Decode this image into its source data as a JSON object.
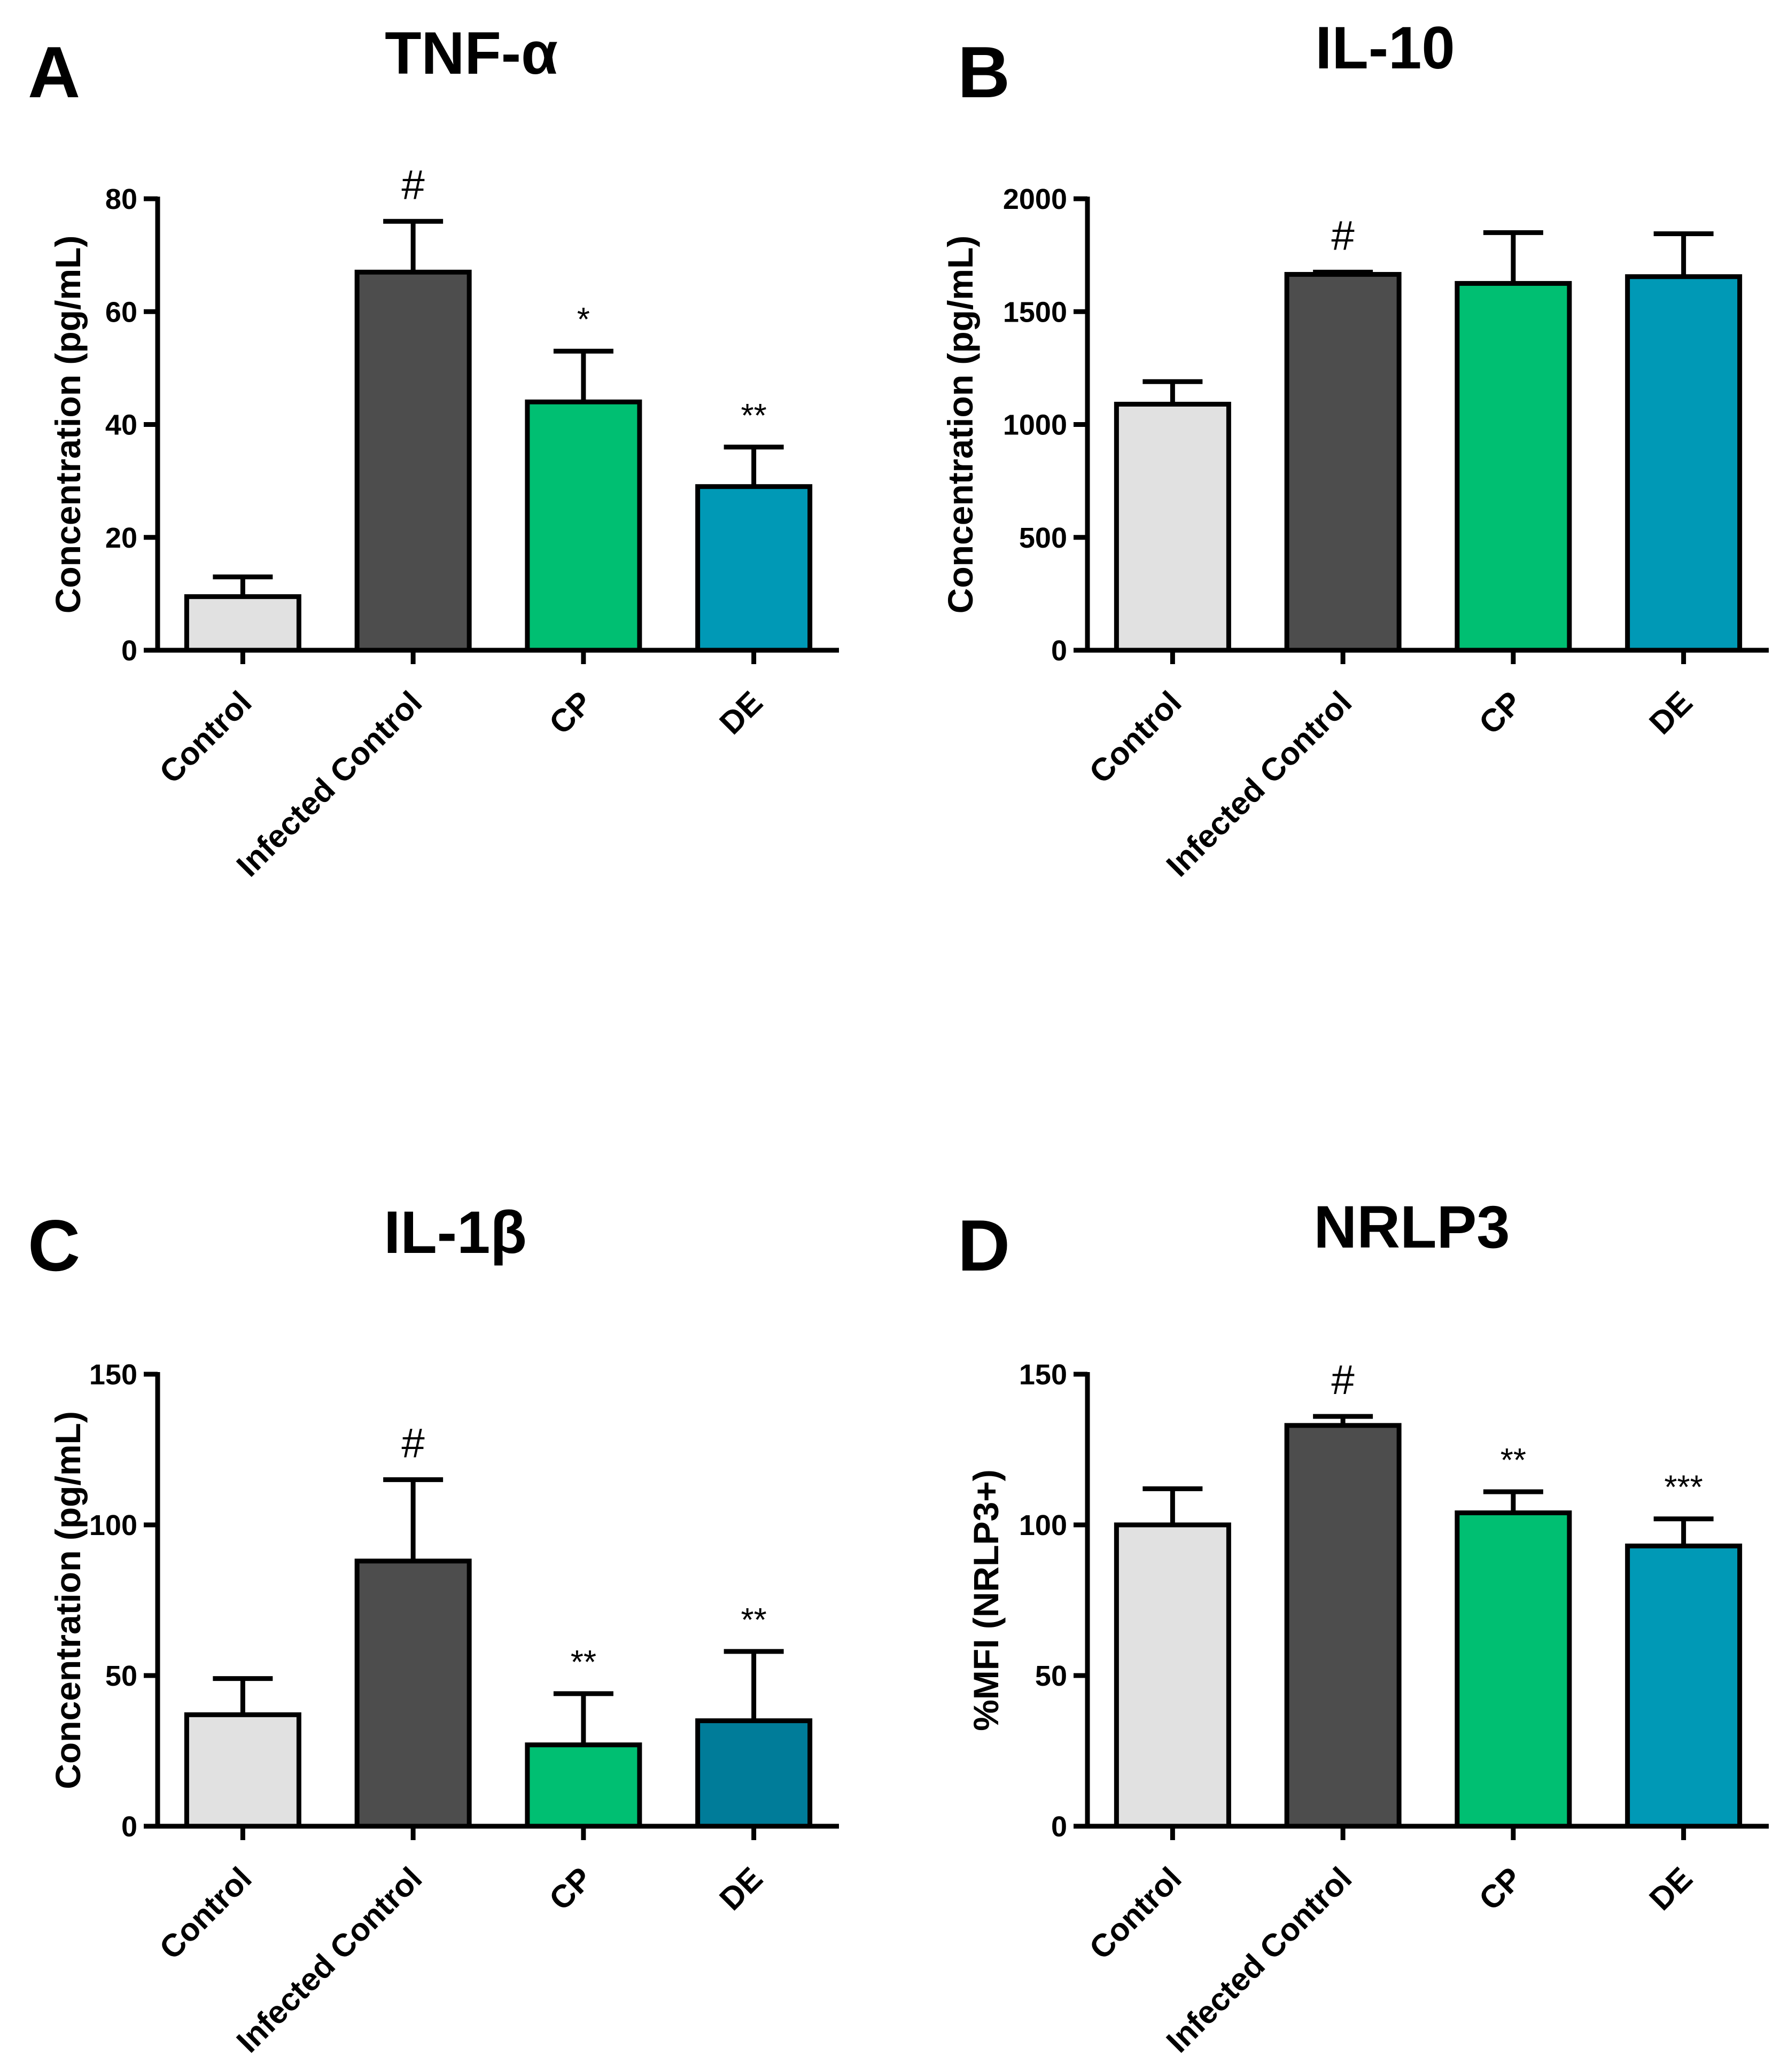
{
  "chart_data": [
    {
      "type": "bar",
      "panel": "A",
      "title": "TNF-α",
      "ylabel": "Concentration (pg/mL)",
      "xlabel": "",
      "ylim": [
        0,
        80
      ],
      "yticks": [
        0,
        20,
        40,
        60,
        80
      ],
      "categories": [
        "Control",
        "Infected Control",
        "CP",
        "DE"
      ],
      "values": [
        9.5,
        67,
        44,
        29
      ],
      "errors": [
        3.5,
        9,
        9,
        7
      ],
      "significance": [
        "",
        "#",
        "*",
        "**"
      ],
      "colors": [
        "#e1e1e1",
        "#4d4d4d",
        "#00bf72",
        "#0099b6"
      ]
    },
    {
      "type": "bar",
      "panel": "B",
      "title": "IL-10",
      "ylabel": "Concentration (pg/mL)",
      "xlabel": "",
      "ylim": [
        0,
        2000
      ],
      "yticks": [
        0,
        500,
        1000,
        1500,
        2000
      ],
      "categories": [
        "Control",
        "Infected Control",
        "CP",
        "DE"
      ],
      "values": [
        1090,
        1665,
        1625,
        1655
      ],
      "errors": [
        100,
        10,
        225,
        190
      ],
      "significance": [
        "",
        "#",
        "",
        ""
      ],
      "colors": [
        "#e1e1e1",
        "#4d4d4d",
        "#00bf72",
        "#0099b6"
      ]
    },
    {
      "type": "bar",
      "panel": "C",
      "title": "IL-1β",
      "ylabel": "Concentration (pg/mL)",
      "xlabel": "",
      "ylim": [
        0,
        150
      ],
      "yticks": [
        0,
        50,
        100,
        150
      ],
      "categories": [
        "Control",
        "Infected Control",
        "CP",
        "DE"
      ],
      "values": [
        37,
        88,
        27,
        35
      ],
      "errors": [
        12,
        27,
        17,
        23
      ],
      "significance": [
        "",
        "#",
        "**",
        "**"
      ],
      "colors": [
        "#e1e1e1",
        "#4d4d4d",
        "#00bf72",
        "#007c99"
      ]
    },
    {
      "type": "bar",
      "panel": "D",
      "title": "NRLP3",
      "ylabel": "%MFI (NRLP3+)",
      "xlabel": "",
      "ylim": [
        0,
        150
      ],
      "yticks": [
        0,
        50,
        100,
        150
      ],
      "categories": [
        "Control",
        "Infected Control",
        "CP",
        "DE"
      ],
      "values": [
        100,
        133,
        104,
        93
      ],
      "errors": [
        12,
        3,
        7,
        9
      ],
      "significance": [
        "",
        "#",
        "**",
        "***"
      ],
      "colors": [
        "#e1e1e1",
        "#4d4d4d",
        "#00bf72",
        "#0099b6"
      ]
    }
  ]
}
